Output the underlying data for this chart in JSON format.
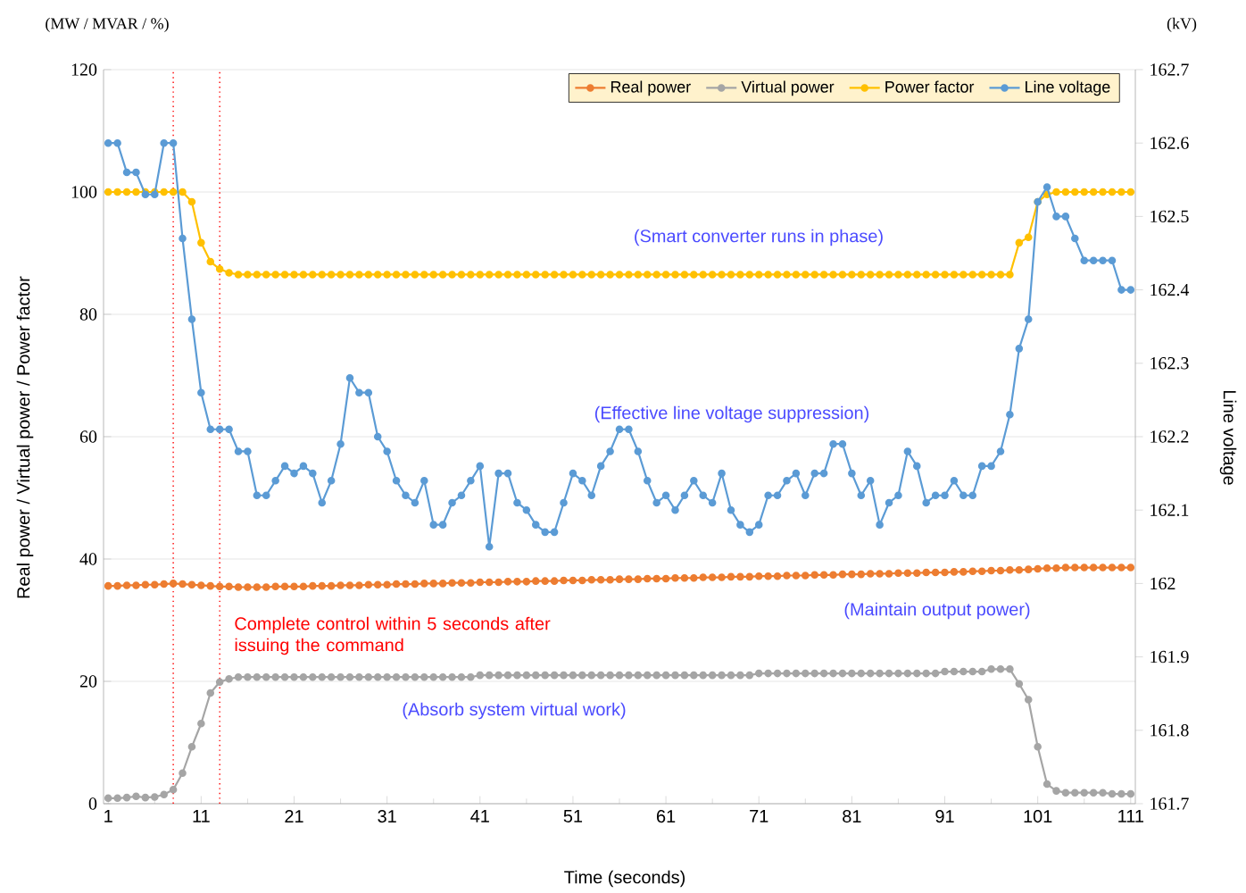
{
  "chart_data": {
    "type": "line",
    "xlabel": "Time (seconds)",
    "ylabel": "Real power / Virtual power / Power factor",
    "y2label": "Line voltage",
    "x": [
      1,
      2,
      3,
      4,
      5,
      6,
      7,
      8,
      9,
      10,
      11,
      12,
      13,
      14,
      15,
      16,
      17,
      18,
      19,
      20,
      21,
      22,
      23,
      24,
      25,
      26,
      27,
      28,
      29,
      30,
      31,
      32,
      33,
      34,
      35,
      36,
      37,
      38,
      39,
      40,
      41,
      42,
      43,
      44,
      45,
      46,
      47,
      48,
      49,
      50,
      51,
      52,
      53,
      54,
      55,
      56,
      57,
      58,
      59,
      60,
      61,
      62,
      63,
      64,
      65,
      66,
      67,
      68,
      69,
      70,
      71,
      72,
      73,
      74,
      75,
      76,
      77,
      78,
      79,
      80,
      81,
      82,
      83,
      84,
      85,
      86,
      87,
      88,
      89,
      90,
      91,
      92,
      93,
      94,
      95,
      96,
      97,
      98,
      99,
      100,
      101,
      102,
      103,
      104,
      105,
      106,
      107,
      108,
      109,
      110,
      111
    ],
    "xlim": [
      0.5,
      111.5
    ],
    "xticks": [
      1,
      11,
      21,
      31,
      41,
      51,
      61,
      71,
      81,
      91,
      101,
      111
    ],
    "ylim": [
      0,
      120
    ],
    "yticks": [
      0,
      20,
      40,
      60,
      80,
      100,
      120
    ],
    "y2lim": [
      161.7,
      162.7
    ],
    "y2ticks": [
      161.7,
      161.8,
      161.9,
      162,
      162.1,
      162.2,
      162.3,
      162.4,
      162.5,
      162.6,
      162.7
    ],
    "grid": "y",
    "legend": "top right",
    "marker": "circle",
    "line_style": "solid",
    "series": [
      {
        "name": "Real power",
        "color": "#ed7d31",
        "values": [
          35.6,
          35.6,
          35.7,
          35.7,
          35.8,
          35.8,
          35.9,
          36.0,
          35.9,
          35.8,
          35.7,
          35.6,
          35.5,
          35.5,
          35.4,
          35.4,
          35.4,
          35.4,
          35.5,
          35.5,
          35.5,
          35.5,
          35.6,
          35.6,
          35.6,
          35.7,
          35.7,
          35.7,
          35.8,
          35.8,
          35.8,
          35.9,
          35.9,
          35.9,
          36.0,
          36.0,
          36.0,
          36.1,
          36.1,
          36.1,
          36.2,
          36.2,
          36.2,
          36.3,
          36.3,
          36.3,
          36.4,
          36.4,
          36.4,
          36.5,
          36.5,
          36.5,
          36.6,
          36.6,
          36.6,
          36.7,
          36.7,
          36.7,
          36.8,
          36.8,
          36.8,
          36.9,
          36.9,
          36.9,
          37.0,
          37.0,
          37.0,
          37.1,
          37.1,
          37.1,
          37.2,
          37.2,
          37.2,
          37.3,
          37.3,
          37.3,
          37.4,
          37.4,
          37.4,
          37.5,
          37.5,
          37.5,
          37.6,
          37.6,
          37.6,
          37.7,
          37.7,
          37.7,
          37.8,
          37.8,
          37.8,
          37.9,
          37.9,
          38.0,
          38.0,
          38.1,
          38.1,
          38.2,
          38.2,
          38.3,
          38.4,
          38.5,
          38.5,
          38.6,
          38.6,
          38.6,
          38.6,
          38.6,
          38.6,
          38.6,
          38.6
        ]
      },
      {
        "name": "Virtual power",
        "color": "#a5a5a5",
        "values": [
          0.9,
          0.9,
          1.0,
          1.2,
          1.0,
          1.1,
          1.5,
          2.3,
          5.0,
          9.3,
          13.1,
          18.1,
          19.9,
          20.4,
          20.7,
          20.7,
          20.7,
          20.7,
          20.7,
          20.7,
          20.7,
          20.7,
          20.7,
          20.7,
          20.7,
          20.7,
          20.7,
          20.7,
          20.7,
          20.7,
          20.7,
          20.7,
          20.7,
          20.7,
          20.7,
          20.7,
          20.7,
          20.7,
          20.7,
          20.7,
          21.0,
          21.0,
          21.0,
          21.0,
          21.0,
          21.0,
          21.0,
          21.0,
          21.0,
          21.0,
          21.0,
          21.0,
          21.0,
          21.0,
          21.0,
          21.0,
          21.0,
          21.0,
          21.0,
          21.0,
          21.0,
          21.0,
          21.0,
          21.0,
          21.0,
          21.0,
          21.0,
          21.0,
          21.0,
          21.0,
          21.3,
          21.3,
          21.3,
          21.3,
          21.3,
          21.3,
          21.3,
          21.3,
          21.3,
          21.3,
          21.3,
          21.3,
          21.3,
          21.3,
          21.3,
          21.3,
          21.3,
          21.3,
          21.3,
          21.3,
          21.6,
          21.6,
          21.6,
          21.6,
          21.6,
          22.0,
          22.0,
          22.0,
          19.6,
          17.0,
          9.3,
          3.2,
          2.1,
          1.8,
          1.8,
          1.8,
          1.8,
          1.8,
          1.6,
          1.6,
          1.6
        ]
      },
      {
        "name": "Power factor",
        "color": "#ffc000",
        "values": [
          100,
          100,
          100,
          100,
          100,
          100,
          100,
          100,
          100,
          98.4,
          91.7,
          88.6,
          87.4,
          86.8,
          86.5,
          86.5,
          86.5,
          86.5,
          86.5,
          86.5,
          86.5,
          86.5,
          86.5,
          86.5,
          86.5,
          86.5,
          86.5,
          86.5,
          86.5,
          86.5,
          86.5,
          86.5,
          86.5,
          86.5,
          86.5,
          86.5,
          86.5,
          86.5,
          86.5,
          86.5,
          86.5,
          86.5,
          86.5,
          86.5,
          86.5,
          86.5,
          86.5,
          86.5,
          86.5,
          86.5,
          86.5,
          86.5,
          86.5,
          86.5,
          86.5,
          86.5,
          86.5,
          86.5,
          86.5,
          86.5,
          86.5,
          86.5,
          86.5,
          86.5,
          86.5,
          86.5,
          86.5,
          86.5,
          86.5,
          86.5,
          86.5,
          86.5,
          86.5,
          86.5,
          86.5,
          86.5,
          86.5,
          86.5,
          86.5,
          86.5,
          86.5,
          86.5,
          86.5,
          86.5,
          86.5,
          86.5,
          86.5,
          86.5,
          86.5,
          86.5,
          86.5,
          86.5,
          86.5,
          86.5,
          86.5,
          86.5,
          86.5,
          86.5,
          91.7,
          92.6,
          98.4,
          99.6,
          100,
          100,
          100,
          100,
          100,
          100,
          100,
          100,
          100
        ]
      },
      {
        "name": "Line voltage",
        "color": "#5b9bd5",
        "axis": "y2",
        "values": [
          162.6,
          162.6,
          162.56,
          162.56,
          162.53,
          162.53,
          162.6,
          162.6,
          162.47,
          162.36,
          162.26,
          162.21,
          162.21,
          162.21,
          162.18,
          162.18,
          162.12,
          162.12,
          162.14,
          162.16,
          162.15,
          162.16,
          162.15,
          162.11,
          162.14,
          162.19,
          162.28,
          162.26,
          162.26,
          162.2,
          162.18,
          162.14,
          162.12,
          162.11,
          162.14,
          162.08,
          162.08,
          162.11,
          162.12,
          162.14,
          162.16,
          162.05,
          162.15,
          162.15,
          162.11,
          162.1,
          162.08,
          162.07,
          162.07,
          162.11,
          162.15,
          162.14,
          162.12,
          162.16,
          162.18,
          162.21,
          162.21,
          162.18,
          162.14,
          162.11,
          162.12,
          162.1,
          162.12,
          162.14,
          162.12,
          162.11,
          162.15,
          162.1,
          162.08,
          162.07,
          162.08,
          162.12,
          162.12,
          162.14,
          162.15,
          162.12,
          162.15,
          162.15,
          162.19,
          162.19,
          162.15,
          162.12,
          162.14,
          162.08,
          162.11,
          162.12,
          162.18,
          162.16,
          162.11,
          162.12,
          162.12,
          162.14,
          162.12,
          162.12,
          162.16,
          162.16,
          162.18,
          162.23,
          162.32,
          162.36,
          162.52,
          162.54,
          162.5,
          162.5,
          162.47,
          162.44,
          162.44,
          162.44,
          162.44,
          162.4,
          162.4
        ]
      }
    ],
    "ref_lines": [
      {
        "axis": "x",
        "value": 8,
        "color": "#ff0000",
        "line_style": "dotted"
      },
      {
        "axis": "x",
        "value": 13,
        "color": "#ff0000",
        "line_style": "dotted"
      }
    ],
    "annotations": [
      "(MW / MVAR / %)",
      "(kV)",
      "(Smart converter runs in phase)",
      "(Effective line voltage suppression)",
      "(Maintain output power)",
      "Complete control within 5 seconds after issuing the command",
      "(Absorb system virtual work)"
    ]
  }
}
